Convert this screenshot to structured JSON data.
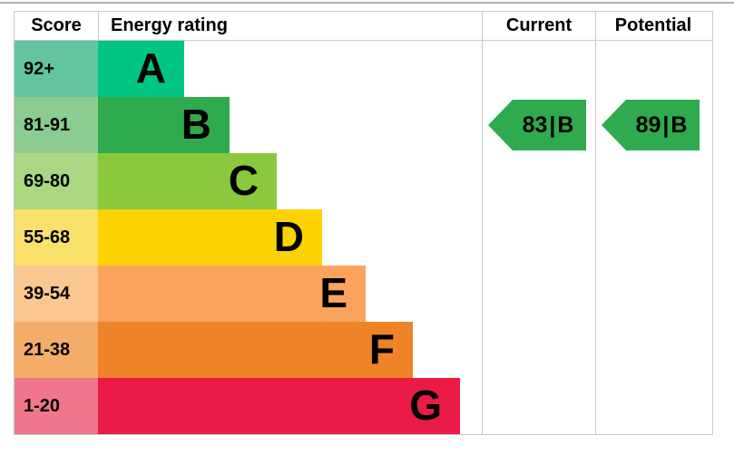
{
  "chart_data": {
    "type": "bar",
    "columns": [
      "Score",
      "Energy rating",
      "Current",
      "Potential"
    ],
    "bands": [
      {
        "letter": "A",
        "score_range": "92+",
        "bar_color": "#00c681",
        "score_bg": "#62c5a0"
      },
      {
        "letter": "B",
        "score_range": "81-91",
        "bar_color": "#2faa4e",
        "score_bg": "#8bcc90"
      },
      {
        "letter": "C",
        "score_range": "69-80",
        "bar_color": "#8ac83e",
        "score_bg": "#abd682"
      },
      {
        "letter": "D",
        "score_range": "55-68",
        "bar_color": "#fcd203",
        "score_bg": "#f9e16b"
      },
      {
        "letter": "E",
        "score_range": "39-54",
        "bar_color": "#fba35d",
        "score_bg": "#fbc791"
      },
      {
        "letter": "F",
        "score_range": "21-38",
        "bar_color": "#ee8327",
        "score_bg": "#f3ad69"
      },
      {
        "letter": "G",
        "score_range": "1-20",
        "bar_color": "#ea1b47",
        "score_bg": "#f1758b"
      }
    ],
    "current": {
      "value": "83",
      "separator": "|",
      "band": "B"
    },
    "potential": {
      "value": "89",
      "separator": "|",
      "band": "B"
    },
    "arrow_color": "#2faa4e"
  }
}
